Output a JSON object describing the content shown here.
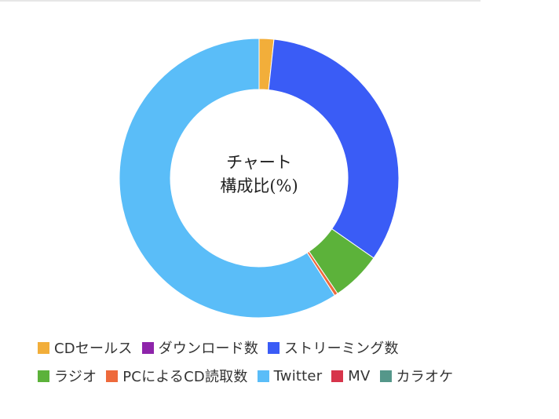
{
  "chart_data": {
    "type": "pie",
    "variant": "donut",
    "title": "チャート\n構成比(%)",
    "title_lines": [
      "チャート",
      "構成比(%)"
    ],
    "legend_position": "bottom",
    "series": [
      {
        "name": "CDセールス",
        "value": 1.7,
        "color": "#F2AE3A"
      },
      {
        "name": "ダウンロード数",
        "value": 0.0,
        "color": "#8E24AA"
      },
      {
        "name": "ストリーミング数",
        "value": 33.0,
        "color": "#3A5CF6"
      },
      {
        "name": "ラジオ",
        "value": 5.8,
        "color": "#5CB23A"
      },
      {
        "name": "PCによるCD読取数",
        "value": 0.4,
        "color": "#EE6A3C"
      },
      {
        "name": "Twitter",
        "value": 59.1,
        "color": "#5ABDF8"
      },
      {
        "name": "MV",
        "value": 0.0,
        "color": "#D7354B"
      },
      {
        "name": "カラオケ",
        "value": 0.0,
        "color": "#55978A"
      }
    ]
  }
}
